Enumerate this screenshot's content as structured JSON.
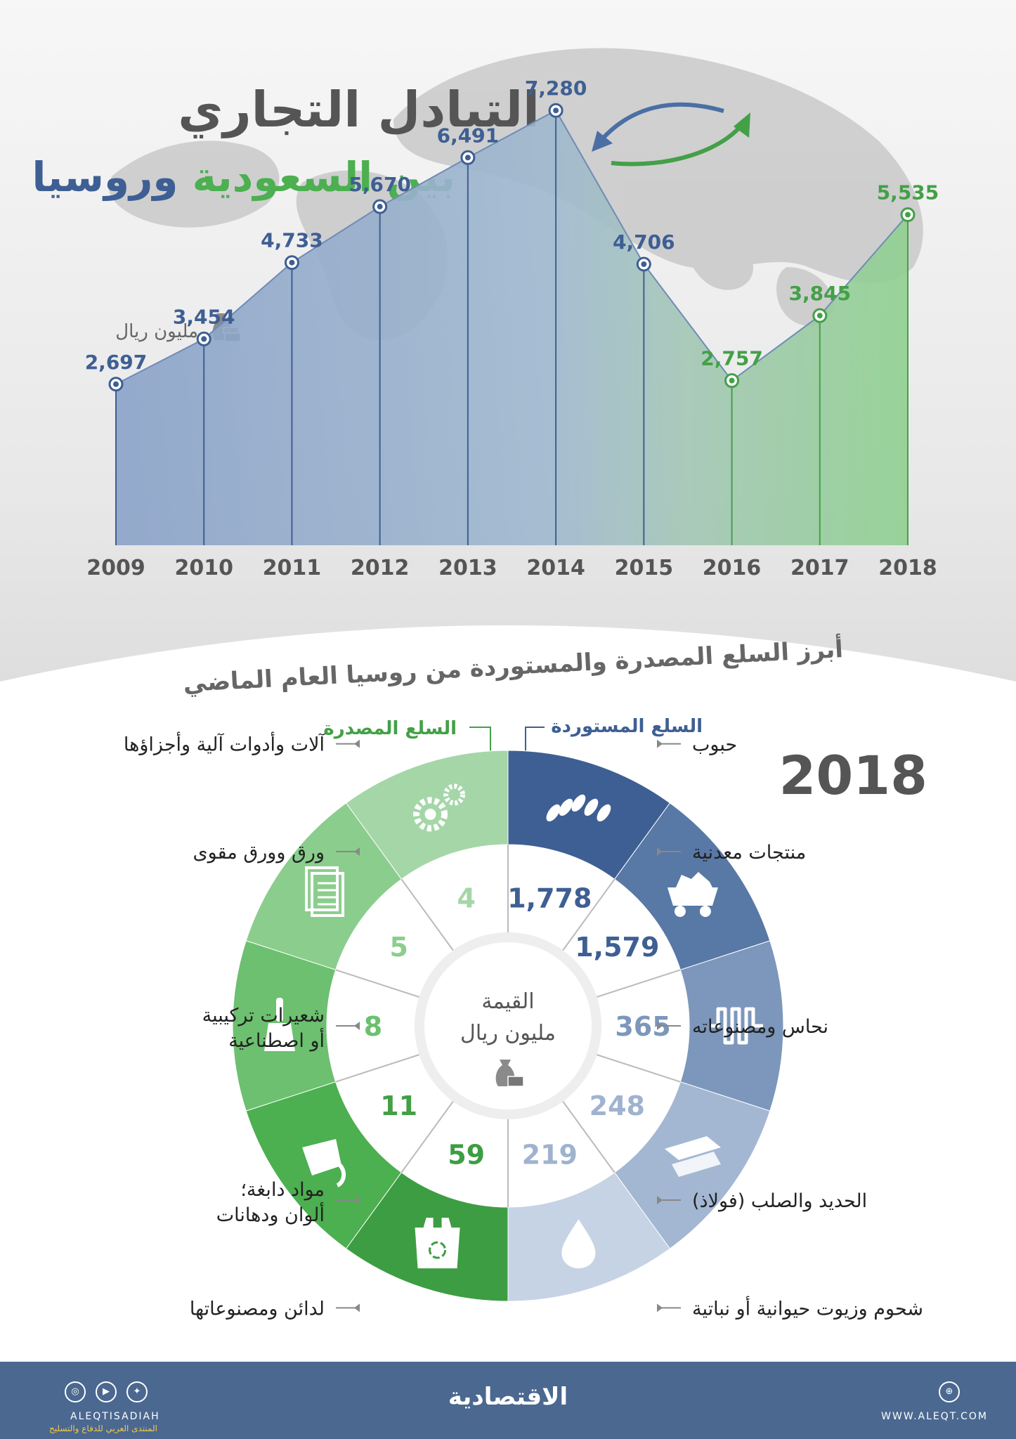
{
  "header": {
    "title_line1": "التبادل التجاري",
    "title_line2_green": "بين السعودية",
    "title_line2_blue": "وروسيا"
  },
  "unit_label": "مليون ريال",
  "section_title": "أبرز السلع المصدرة والمستوردة من روسيا العام الماضي",
  "colors": {
    "blue": "#3e5f93",
    "green": "#4caf50",
    "grey": "#555555",
    "footer": "#4a6890"
  },
  "chart_data": [
    {
      "type": "area",
      "x": [
        "2009",
        "2010",
        "2011",
        "2012",
        "2013",
        "2014",
        "2015",
        "2016",
        "2017",
        "2018"
      ],
      "values": [
        2697,
        3454,
        4733,
        5670,
        6491,
        7280,
        4706,
        2757,
        3845,
        5535
      ],
      "labels": [
        "2,697",
        "3,454",
        "4,733",
        "5,670",
        "6,491",
        "7,280",
        "4,706",
        "2,757",
        "3,845",
        "5,535"
      ],
      "green_from_index": 7,
      "ylim": [
        0,
        8000
      ],
      "grid": false
    },
    {
      "type": "pie",
      "year": "2018",
      "center_label_line1": "القيمة",
      "center_label_line2": "مليون ريال",
      "imports_label": "السلع المستوردة",
      "exports_label": "السلع المصدرة",
      "imports": [
        {
          "name": "حبوب",
          "value": "1,778",
          "icon": "grain-icon"
        },
        {
          "name": "منتجات معدنية",
          "value": "1,579",
          "icon": "mine-cart-icon"
        },
        {
          "name": "نحاس ومصنوعاته",
          "value": "365",
          "icon": "copper-coil-icon"
        },
        {
          "name": "الحديد والصلب (فولاذ)",
          "value": "248",
          "icon": "steel-beam-icon"
        },
        {
          "name": "شحوم وزيوت حيوانية أو نباتية",
          "value": "219",
          "icon": "oil-drop-icon"
        }
      ],
      "exports": [
        {
          "name": "آلات وأدوات آلية وأجزاؤها",
          "value": "4",
          "icon": "gears-icon"
        },
        {
          "name": "ورق وورق مقوى",
          "value": "5",
          "icon": "paper-icon"
        },
        {
          "name_line1": "شعيرات تركيبية",
          "name_line2": "أو اصطناعية",
          "value": "8",
          "icon": "brush-icon"
        },
        {
          "name_line1": "مواد دابغة؛",
          "name_line2": "ألوان ودهانات",
          "value": "11",
          "icon": "paint-bucket-icon"
        },
        {
          "name": "لدائن ومصنوعاتها",
          "value": "59",
          "icon": "plastic-bag-icon"
        }
      ]
    }
  ],
  "footer": {
    "logo": "الاقتصادية",
    "url": "WWW.ALEQT.COM",
    "handle": "ALEQTISADIAH",
    "watermark": "المنتدى العربي للدفاع والتسليح"
  }
}
